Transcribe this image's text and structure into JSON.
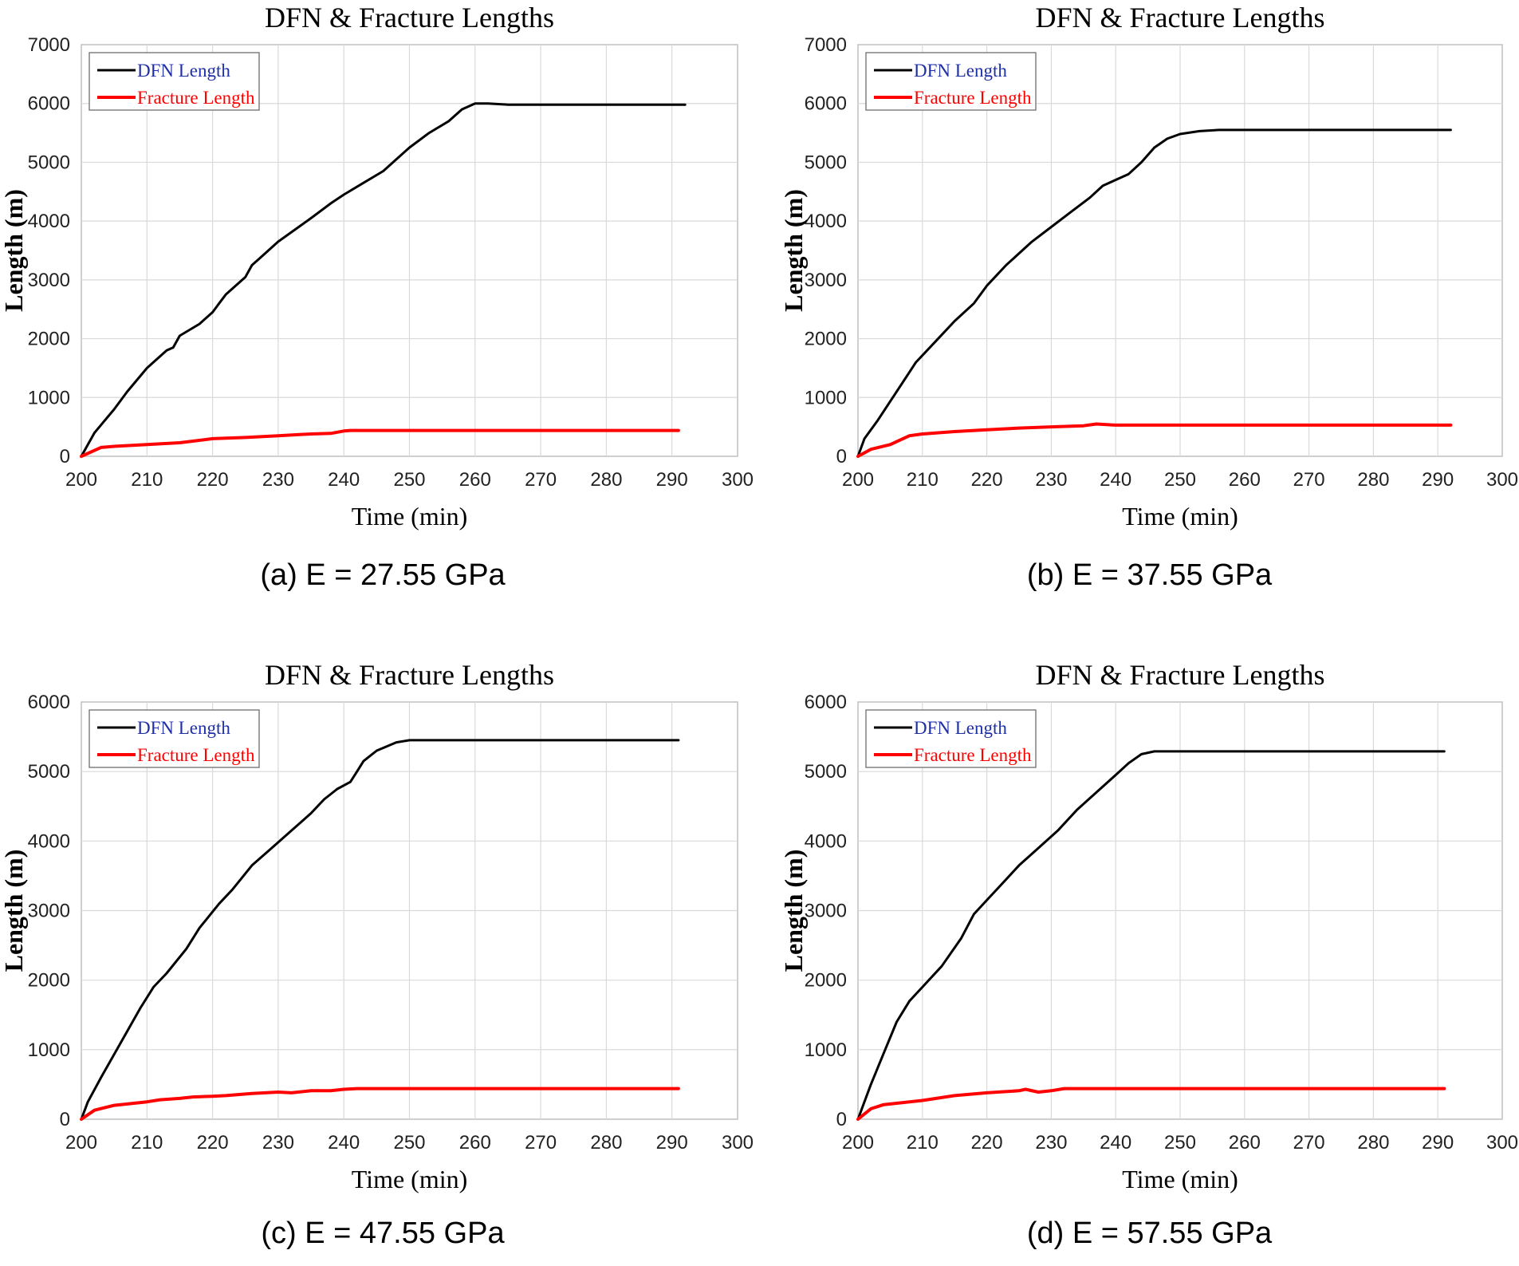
{
  "colors": {
    "dfn": "#000000",
    "fracture": "#ff0000",
    "dfn_legend_text": "#1f2fa8",
    "fracture_legend_text": "#ff0000",
    "grid": "#d9d9d9"
  },
  "chart_data": [
    {
      "type": "line",
      "title": "DFN & Fracture Lengths",
      "caption": "(a) E = 27.55 GPa",
      "xlabel": "Time (min)",
      "ylabel": "Length (m)",
      "xlim": [
        200,
        300
      ],
      "ylim": [
        0,
        7000
      ],
      "xticks": [
        200,
        210,
        220,
        230,
        240,
        250,
        260,
        270,
        280,
        290,
        300
      ],
      "yticks": [
        0,
        1000,
        2000,
        3000,
        4000,
        5000,
        6000,
        7000
      ],
      "grid": true,
      "legend": "top-left",
      "series": [
        {
          "name": "DFN Length",
          "x": [
            200,
            202,
            205,
            207,
            210,
            213,
            214,
            215,
            218,
            220,
            221,
            222,
            225,
            226,
            227,
            230,
            235,
            238,
            240,
            243,
            246,
            248,
            250,
            253,
            256,
            258,
            260,
            262,
            265,
            270,
            280,
            292
          ],
          "y": [
            0,
            400,
            800,
            1100,
            1500,
            1800,
            1850,
            2050,
            2250,
            2450,
            2600,
            2750,
            3050,
            3250,
            3350,
            3650,
            4050,
            4300,
            4450,
            4650,
            4850,
            5050,
            5250,
            5500,
            5700,
            5900,
            6000,
            6000,
            5980,
            5980,
            5980,
            5980
          ]
        },
        {
          "name": "Fracture Length",
          "x": [
            200,
            203,
            205,
            210,
            215,
            220,
            225,
            230,
            235,
            238,
            240,
            241,
            250,
            260,
            270,
            280,
            291
          ],
          "y": [
            0,
            150,
            170,
            200,
            230,
            300,
            320,
            350,
            380,
            390,
            430,
            440,
            440,
            440,
            440,
            440,
            440
          ]
        }
      ]
    },
    {
      "type": "line",
      "title": "DFN & Fracture Lengths",
      "caption": "(b) E = 37.55 GPa",
      "xlabel": "Time (min)",
      "ylabel": "Length (m)",
      "xlim": [
        200,
        300
      ],
      "ylim": [
        0,
        7000
      ],
      "xticks": [
        200,
        210,
        220,
        230,
        240,
        250,
        260,
        270,
        280,
        290,
        300
      ],
      "yticks": [
        0,
        1000,
        2000,
        3000,
        4000,
        5000,
        6000,
        7000
      ],
      "grid": true,
      "legend": "top-left",
      "series": [
        {
          "name": "DFN Length",
          "x": [
            200,
            201,
            203,
            206,
            209,
            212,
            215,
            218,
            220,
            223,
            227,
            230,
            233,
            236,
            238,
            240,
            242,
            244,
            246,
            248,
            250,
            253,
            256,
            260,
            270,
            280,
            292
          ],
          "y": [
            0,
            300,
            600,
            1100,
            1600,
            1950,
            2300,
            2600,
            2900,
            3250,
            3650,
            3900,
            4150,
            4400,
            4600,
            4700,
            4800,
            5000,
            5250,
            5400,
            5480,
            5530,
            5550,
            5550,
            5550,
            5550,
            5550
          ]
        },
        {
          "name": "Fracture Length",
          "x": [
            200,
            202,
            205,
            208,
            210,
            215,
            220,
            225,
            230,
            235,
            237,
            240,
            250,
            260,
            270,
            280,
            292
          ],
          "y": [
            0,
            120,
            200,
            350,
            380,
            420,
            450,
            480,
            500,
            520,
            550,
            530,
            530,
            530,
            530,
            530,
            530
          ]
        }
      ]
    },
    {
      "type": "line",
      "title": "DFN & Fracture Lengths",
      "caption": "(c) E = 47.55 GPa",
      "xlabel": "Time (min)",
      "ylabel": "Length (m)",
      "xlim": [
        200,
        300
      ],
      "ylim": [
        0,
        6000
      ],
      "xticks": [
        200,
        210,
        220,
        230,
        240,
        250,
        260,
        270,
        280,
        290,
        300
      ],
      "yticks": [
        0,
        1000,
        2000,
        3000,
        4000,
        5000,
        6000
      ],
      "grid": true,
      "legend": "top-left",
      "series": [
        {
          "name": "DFN Length",
          "x": [
            200,
            201,
            203,
            206,
            209,
            211,
            213,
            216,
            218,
            221,
            223,
            226,
            229,
            232,
            235,
            237,
            239,
            241,
            242,
            243,
            245,
            248,
            250,
            253,
            260,
            270,
            280,
            291
          ],
          "y": [
            0,
            250,
            600,
            1100,
            1600,
            1900,
            2100,
            2450,
            2750,
            3100,
            3300,
            3650,
            3900,
            4150,
            4400,
            4600,
            4750,
            4850,
            5000,
            5150,
            5300,
            5420,
            5450,
            5450,
            5450,
            5450,
            5450,
            5450
          ]
        },
        {
          "name": "Fracture Length",
          "x": [
            200,
            202,
            205,
            210,
            212,
            215,
            217,
            220,
            222,
            226,
            230,
            232,
            235,
            238,
            240,
            242,
            250,
            260,
            270,
            280,
            291
          ],
          "y": [
            0,
            130,
            200,
            250,
            280,
            300,
            320,
            330,
            340,
            370,
            390,
            380,
            410,
            410,
            430,
            440,
            440,
            440,
            440,
            440,
            440
          ]
        }
      ]
    },
    {
      "type": "line",
      "title": "DFN & Fracture Lengths",
      "caption": "(d) E = 57.55 GPa",
      "xlabel": "Time (min)",
      "ylabel": "Length (m)",
      "xlim": [
        200,
        300
      ],
      "ylim": [
        0,
        6000
      ],
      "xticks": [
        200,
        210,
        220,
        230,
        240,
        250,
        260,
        270,
        280,
        290,
        300
      ],
      "yticks": [
        0,
        1000,
        2000,
        3000,
        4000,
        5000,
        6000
      ],
      "grid": true,
      "legend": "top-left",
      "series": [
        {
          "name": "DFN Length",
          "x": [
            200,
            202,
            204,
            206,
            208,
            210,
            213,
            216,
            218,
            220,
            222,
            225,
            228,
            231,
            234,
            237,
            240,
            242,
            244,
            246,
            250,
            260,
            270,
            280,
            291
          ],
          "y": [
            0,
            500,
            950,
            1400,
            1700,
            1900,
            2200,
            2600,
            2950,
            3150,
            3350,
            3650,
            3900,
            4150,
            4450,
            4700,
            4950,
            5120,
            5250,
            5290,
            5290,
            5290,
            5290,
            5290,
            5290
          ]
        },
        {
          "name": "Fracture Length",
          "x": [
            200,
            202,
            204,
            206,
            210,
            215,
            220,
            225,
            226,
            228,
            230,
            232,
            240,
            250,
            260,
            270,
            280,
            291
          ],
          "y": [
            0,
            150,
            210,
            230,
            270,
            340,
            380,
            410,
            430,
            390,
            410,
            440,
            440,
            440,
            440,
            440,
            440,
            440
          ]
        }
      ]
    }
  ]
}
